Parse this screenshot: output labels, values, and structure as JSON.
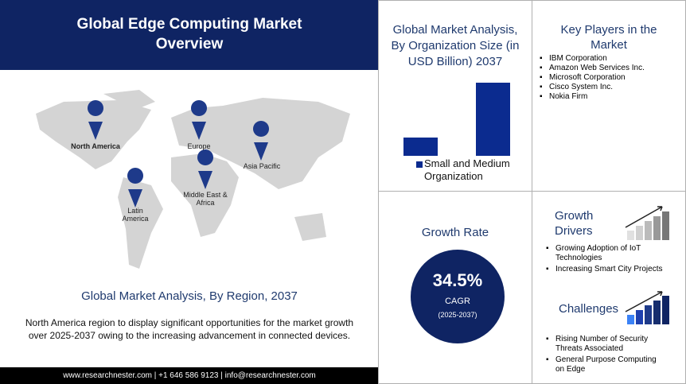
{
  "header": {
    "title": "Global Edge Computing Market Overview"
  },
  "map": {
    "regions": [
      "North America",
      "Europe",
      "Asia Pacific",
      "Middle East & Africa",
      "Latin America"
    ],
    "title": "Global Market Analysis, By Region, 2037",
    "description": "North America region to display significant opportunities  for the market growth over 2025-2037 owing to the increasing advancement in connected  devices."
  },
  "footer": "www.researchnester.com | +1 646 586 9123 | info@researchnester.com",
  "chart_data": {
    "type": "bar",
    "title": "Global Market Analysis, By Organization Size (in USD Billion) 2037",
    "series": [
      {
        "name": "Small and Medium Organization",
        "color": "#0b2b8f",
        "values": [
          4,
          16
        ]
      }
    ]
  },
  "key_players": {
    "title": "Key Players in the Market",
    "items": [
      "IBM Corporation",
      "Amazon Web Services Inc.",
      "Microsoft Corporation",
      "Cisco System Inc.",
      "Nokia Firm"
    ]
  },
  "growth_rate": {
    "title": "Growth Rate",
    "value": "34.5%",
    "label": "CAGR",
    "period": "(2025-2037)"
  },
  "growth_drivers": {
    "title": "Growth Drivers",
    "items": [
      "Growing Adoption of IoT Technologies",
      "Increasing Smart City Projects"
    ]
  },
  "challenges": {
    "title": "Challenges",
    "items": [
      "Rising Number of Security Threats Associated",
      "General Purpose Computing on Edge"
    ]
  }
}
